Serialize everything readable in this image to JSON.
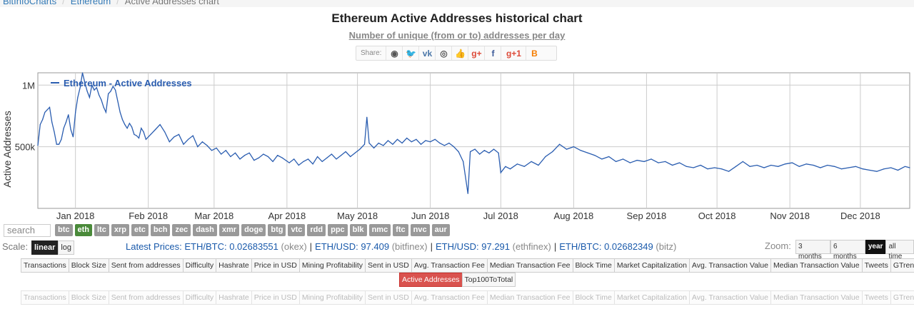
{
  "breadcrumb": {
    "home": "BitInfoCharts",
    "section": "Ethereum",
    "current": "Active Addresses chart"
  },
  "header": {
    "title": "Ethereum Active Addresses historical chart",
    "subtitle": "Number of unique (from or to) addresses per day"
  },
  "share": {
    "label": "Share:",
    "icons": [
      "reddit-icon",
      "twitter-icon",
      "vk-icon",
      "weibo-icon",
      "like-icon",
      "google-plus-icon",
      "facebook-icon",
      "google-plus-one-icon",
      "blogger-icon"
    ],
    "glyphs": [
      "◉",
      "🐦",
      "vk",
      "◎",
      "👍",
      "g+",
      "f",
      "g+1",
      "B"
    ],
    "colors": [
      "#555",
      "#1da1f2",
      "#4a76a8",
      "#555",
      "#3b5998",
      "#dd4b39",
      "#3b5998",
      "#dd4b39",
      "#f57d00"
    ]
  },
  "chart_data": {
    "type": "line",
    "title": "",
    "xlabel": "",
    "ylabel": "Active Addresses",
    "ytick_labels": [
      "500k",
      "1M"
    ],
    "ytick_values": [
      500000,
      1000000
    ],
    "ylim": [
      0,
      1100000
    ],
    "grid": true,
    "legend_position": "top-left",
    "x_tick_labels": [
      "Jan 2018",
      "Feb 2018",
      "Mar 2018",
      "Apr 2018",
      "May 2018",
      "Jun 2018",
      "Jul 2018",
      "Aug 2018",
      "Sep 2018",
      "Oct 2018",
      "Nov 2018",
      "Dec 2018"
    ],
    "x_tick_dates": [
      "2018-01-01",
      "2018-02-01",
      "2018-03-01",
      "2018-04-01",
      "2018-05-01",
      "2018-06-01",
      "2018-07-01",
      "2018-08-01",
      "2018-09-01",
      "2018-10-01",
      "2018-11-01",
      "2018-12-01"
    ],
    "x_range": [
      "2017-12-16",
      "2018-12-22"
    ],
    "series": [
      {
        "name": "Ethereum - Active Addresses",
        "color": "#2a5db0",
        "points": [
          [
            "2017-12-16",
            510000
          ],
          [
            "2017-12-17",
            680000
          ],
          [
            "2017-12-18",
            720000
          ],
          [
            "2017-12-19",
            780000
          ],
          [
            "2017-12-20",
            800000
          ],
          [
            "2017-12-21",
            820000
          ],
          [
            "2017-12-22",
            700000
          ],
          [
            "2017-12-23",
            620000
          ],
          [
            "2017-12-24",
            520000
          ],
          [
            "2017-12-25",
            520000
          ],
          [
            "2017-12-26",
            560000
          ],
          [
            "2017-12-27",
            650000
          ],
          [
            "2017-12-28",
            700000
          ],
          [
            "2017-12-29",
            760000
          ],
          [
            "2017-12-30",
            640000
          ],
          [
            "2017-12-31",
            580000
          ],
          [
            "2018-01-01",
            780000
          ],
          [
            "2018-01-02",
            900000
          ],
          [
            "2018-01-03",
            980000
          ],
          [
            "2018-01-04",
            1100000
          ],
          [
            "2018-01-05",
            1020000
          ],
          [
            "2018-01-06",
            950000
          ],
          [
            "2018-01-07",
            900000
          ],
          [
            "2018-01-08",
            1000000
          ],
          [
            "2018-01-09",
            960000
          ],
          [
            "2018-01-10",
            980000
          ],
          [
            "2018-01-11",
            920000
          ],
          [
            "2018-01-12",
            880000
          ],
          [
            "2018-01-13",
            820000
          ],
          [
            "2018-01-14",
            780000
          ],
          [
            "2018-01-15",
            930000
          ],
          [
            "2018-01-16",
            950000
          ],
          [
            "2018-01-17",
            990000
          ],
          [
            "2018-01-18",
            960000
          ],
          [
            "2018-01-19",
            870000
          ],
          [
            "2018-01-20",
            780000
          ],
          [
            "2018-01-21",
            720000
          ],
          [
            "2018-01-22",
            680000
          ],
          [
            "2018-01-23",
            650000
          ],
          [
            "2018-01-24",
            690000
          ],
          [
            "2018-01-25",
            660000
          ],
          [
            "2018-01-26",
            600000
          ],
          [
            "2018-01-27",
            590000
          ],
          [
            "2018-01-28",
            570000
          ],
          [
            "2018-01-29",
            650000
          ],
          [
            "2018-01-30",
            620000
          ],
          [
            "2018-01-31",
            560000
          ],
          [
            "2018-02-02",
            600000
          ],
          [
            "2018-02-04",
            640000
          ],
          [
            "2018-02-06",
            680000
          ],
          [
            "2018-02-08",
            620000
          ],
          [
            "2018-02-10",
            540000
          ],
          [
            "2018-02-12",
            580000
          ],
          [
            "2018-02-14",
            600000
          ],
          [
            "2018-02-16",
            520000
          ],
          [
            "2018-02-18",
            560000
          ],
          [
            "2018-02-20",
            590000
          ],
          [
            "2018-02-22",
            500000
          ],
          [
            "2018-02-24",
            540000
          ],
          [
            "2018-02-26",
            510000
          ],
          [
            "2018-02-28",
            470000
          ],
          [
            "2018-03-02",
            490000
          ],
          [
            "2018-03-04",
            440000
          ],
          [
            "2018-03-06",
            470000
          ],
          [
            "2018-03-08",
            420000
          ],
          [
            "2018-03-10",
            450000
          ],
          [
            "2018-03-12",
            400000
          ],
          [
            "2018-03-14",
            430000
          ],
          [
            "2018-03-16",
            450000
          ],
          [
            "2018-03-18",
            390000
          ],
          [
            "2018-03-20",
            410000
          ],
          [
            "2018-03-22",
            440000
          ],
          [
            "2018-03-24",
            420000
          ],
          [
            "2018-03-26",
            380000
          ],
          [
            "2018-03-28",
            430000
          ],
          [
            "2018-03-30",
            410000
          ],
          [
            "2018-04-02",
            370000
          ],
          [
            "2018-04-04",
            400000
          ],
          [
            "2018-04-06",
            350000
          ],
          [
            "2018-04-08",
            380000
          ],
          [
            "2018-04-10",
            400000
          ],
          [
            "2018-04-12",
            360000
          ],
          [
            "2018-04-14",
            420000
          ],
          [
            "2018-04-16",
            380000
          ],
          [
            "2018-04-18",
            410000
          ],
          [
            "2018-04-20",
            440000
          ],
          [
            "2018-04-22",
            400000
          ],
          [
            "2018-04-24",
            430000
          ],
          [
            "2018-04-26",
            460000
          ],
          [
            "2018-04-28",
            420000
          ],
          [
            "2018-04-30",
            450000
          ],
          [
            "2018-05-02",
            480000
          ],
          [
            "2018-05-04",
            520000
          ],
          [
            "2018-05-05",
            740000
          ],
          [
            "2018-05-06",
            530000
          ],
          [
            "2018-05-08",
            490000
          ],
          [
            "2018-05-10",
            530000
          ],
          [
            "2018-05-12",
            510000
          ],
          [
            "2018-05-14",
            550000
          ],
          [
            "2018-05-16",
            520000
          ],
          [
            "2018-05-18",
            560000
          ],
          [
            "2018-05-20",
            530000
          ],
          [
            "2018-05-22",
            570000
          ],
          [
            "2018-05-24",
            540000
          ],
          [
            "2018-05-26",
            560000
          ],
          [
            "2018-05-28",
            520000
          ],
          [
            "2018-05-30",
            550000
          ],
          [
            "2018-06-01",
            540000
          ],
          [
            "2018-06-03",
            560000
          ],
          [
            "2018-06-05",
            530000
          ],
          [
            "2018-06-07",
            510000
          ],
          [
            "2018-06-09",
            530000
          ],
          [
            "2018-06-11",
            500000
          ],
          [
            "2018-06-13",
            460000
          ],
          [
            "2018-06-15",
            380000
          ],
          [
            "2018-06-17",
            120000
          ],
          [
            "2018-06-18",
            460000
          ],
          [
            "2018-06-20",
            480000
          ],
          [
            "2018-06-22",
            440000
          ],
          [
            "2018-06-24",
            470000
          ],
          [
            "2018-06-26",
            450000
          ],
          [
            "2018-06-28",
            480000
          ],
          [
            "2018-06-30",
            450000
          ],
          [
            "2018-07-01",
            290000
          ],
          [
            "2018-07-03",
            340000
          ],
          [
            "2018-07-05",
            320000
          ],
          [
            "2018-07-08",
            360000
          ],
          [
            "2018-07-11",
            340000
          ],
          [
            "2018-07-14",
            380000
          ],
          [
            "2018-07-17",
            350000
          ],
          [
            "2018-07-20",
            420000
          ],
          [
            "2018-07-23",
            460000
          ],
          [
            "2018-07-26",
            520000
          ],
          [
            "2018-07-29",
            480000
          ],
          [
            "2018-08-01",
            500000
          ],
          [
            "2018-08-04",
            470000
          ],
          [
            "2018-08-07",
            450000
          ],
          [
            "2018-08-10",
            430000
          ],
          [
            "2018-08-13",
            400000
          ],
          [
            "2018-08-16",
            420000
          ],
          [
            "2018-08-19",
            380000
          ],
          [
            "2018-08-22",
            400000
          ],
          [
            "2018-08-25",
            370000
          ],
          [
            "2018-08-28",
            390000
          ],
          [
            "2018-08-31",
            380000
          ],
          [
            "2018-09-03",
            400000
          ],
          [
            "2018-09-06",
            370000
          ],
          [
            "2018-09-09",
            380000
          ],
          [
            "2018-09-12",
            350000
          ],
          [
            "2018-09-15",
            370000
          ],
          [
            "2018-09-18",
            340000
          ],
          [
            "2018-09-21",
            330000
          ],
          [
            "2018-09-24",
            350000
          ],
          [
            "2018-09-27",
            320000
          ],
          [
            "2018-09-30",
            330000
          ],
          [
            "2018-10-03",
            320000
          ],
          [
            "2018-10-06",
            300000
          ],
          [
            "2018-10-09",
            340000
          ],
          [
            "2018-10-12",
            380000
          ],
          [
            "2018-10-15",
            340000
          ],
          [
            "2018-10-18",
            350000
          ],
          [
            "2018-10-21",
            330000
          ],
          [
            "2018-10-24",
            350000
          ],
          [
            "2018-10-27",
            340000
          ],
          [
            "2018-10-30",
            360000
          ],
          [
            "2018-11-02",
            370000
          ],
          [
            "2018-11-05",
            340000
          ],
          [
            "2018-11-08",
            360000
          ],
          [
            "2018-11-11",
            350000
          ],
          [
            "2018-11-14",
            330000
          ],
          [
            "2018-11-17",
            350000
          ],
          [
            "2018-11-20",
            340000
          ],
          [
            "2018-11-23",
            320000
          ],
          [
            "2018-11-26",
            330000
          ],
          [
            "2018-11-29",
            340000
          ],
          [
            "2018-12-02",
            320000
          ],
          [
            "2018-12-05",
            310000
          ],
          [
            "2018-12-08",
            300000
          ],
          [
            "2018-12-11",
            320000
          ],
          [
            "2018-12-14",
            330000
          ],
          [
            "2018-12-17",
            310000
          ],
          [
            "2018-12-20",
            340000
          ],
          [
            "2018-12-22",
            330000
          ]
        ]
      }
    ]
  },
  "search": {
    "placeholder": "search"
  },
  "coins": [
    "btc",
    "eth",
    "ltc",
    "xrp",
    "etc",
    "bch",
    "zec",
    "dash",
    "xmr",
    "doge",
    "btg",
    "vtc",
    "rdd",
    "ppc",
    "blk",
    "nmc",
    "ftc",
    "nvc",
    "aur"
  ],
  "active_coin": "eth",
  "scale": {
    "label": "Scale:",
    "options": [
      "linear",
      "log"
    ],
    "active": "linear"
  },
  "prices": {
    "label": "Latest Prices:",
    "items": [
      {
        "pair": "ETH/BTC: 0.02683551",
        "exchange": "(okex)"
      },
      {
        "pair": "ETH/USD: 97.409",
        "exchange": "(bitfinex)"
      },
      {
        "pair": "ETH/USD: 97.291",
        "exchange": "(ethfinex)"
      },
      {
        "pair": "ETH/BTC: 0.02682349",
        "exchange": "(bitz)"
      }
    ]
  },
  "zoom": {
    "label": "Zoom:",
    "options": [
      "3 months",
      "6 months",
      "year",
      "all time"
    ],
    "active": "year"
  },
  "metrics_row1": [
    "Transactions",
    "Block Size",
    "Sent from addresses",
    "Difficulty",
    "Hashrate",
    "Price in USD",
    "Mining Profitability",
    "Sent in USD",
    "Avg. Transaction Fee",
    "Median Transaction Fee",
    "Block Time",
    "Market Capitalization",
    "Avg. Transaction Value",
    "Median Transaction Value",
    "Tweets",
    "GTrends"
  ],
  "metrics_row2": [
    "Active Addresses",
    "Top100ToTotal"
  ],
  "metrics_active": "Active Addresses",
  "metrics_row3": [
    "Transactions",
    "Block Size",
    "Sent from addresses",
    "Difficulty",
    "Hashrate",
    "Price in USD",
    "Mining Profitability",
    "Sent in USD",
    "Avg. Transaction Fee",
    "Median Transaction Fee",
    "Block Time",
    "Market Capitalization",
    "Avg. Transaction Value",
    "Median Transaction Value",
    "Tweets",
    "GTrends"
  ]
}
